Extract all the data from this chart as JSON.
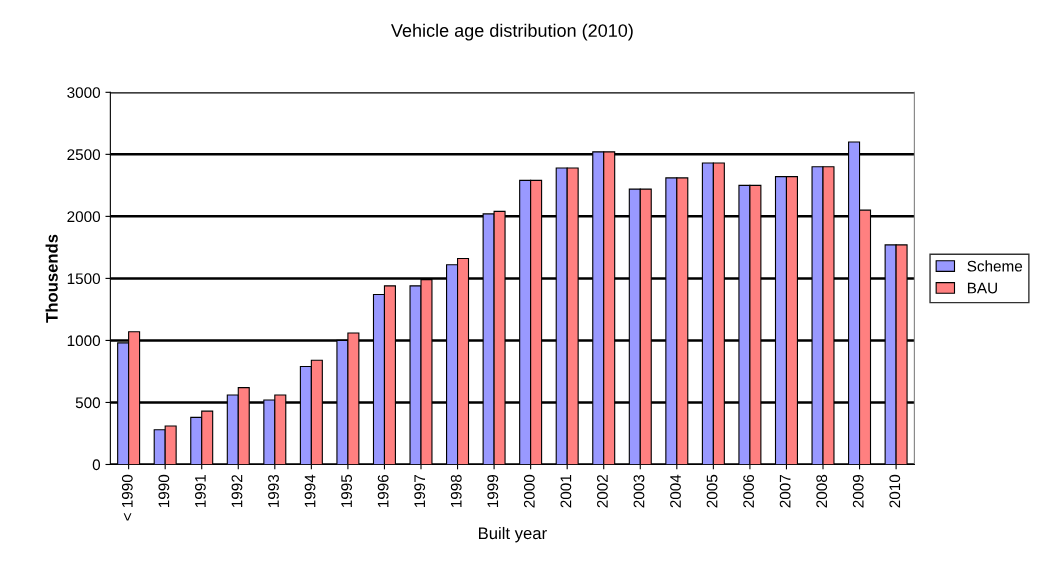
{
  "chart_data": {
    "type": "bar",
    "title": "Vehicle age distribution (2010)",
    "xlabel": "Built year",
    "ylabel": "Thousends",
    "categories": [
      "< 1990",
      "1990",
      "1991",
      "1992",
      "1993",
      "1994",
      "1995",
      "1996",
      "1997",
      "1998",
      "1999",
      "2000",
      "2001",
      "2002",
      "2003",
      "2004",
      "2005",
      "2006",
      "2007",
      "2008",
      "2009",
      "2010"
    ],
    "series": [
      {
        "name": "Scheme",
        "color": "#9999ff",
        "values": [
          980,
          280,
          380,
          560,
          520,
          790,
          1000,
          1370,
          1440,
          1610,
          2020,
          2290,
          2390,
          2520,
          2220,
          2310,
          2430,
          2250,
          2320,
          2400,
          2600,
          1770
        ]
      },
      {
        "name": "BAU",
        "color": "#ff8080",
        "values": [
          1070,
          310,
          430,
          620,
          560,
          840,
          1060,
          1440,
          1490,
          1660,
          2040,
          2290,
          2390,
          2520,
          2220,
          2310,
          2430,
          2250,
          2320,
          2400,
          2050,
          1770
        ]
      }
    ],
    "ylim": [
      0,
      3000
    ],
    "yticks": [
      0,
      500,
      1000,
      1500,
      2000,
      2500,
      3000
    ],
    "grid": "y",
    "legend": "right"
  }
}
